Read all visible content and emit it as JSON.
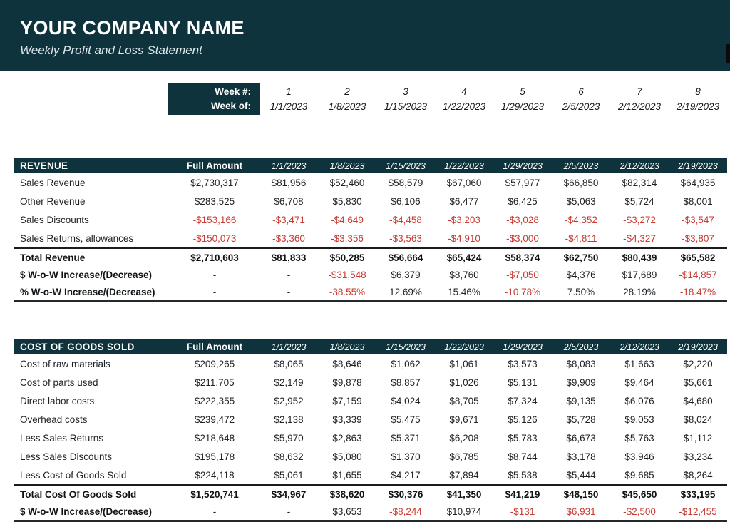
{
  "banner": {
    "company_name": "YOUR COMPANY NAME",
    "subtitle": "Weekly Profit and Loss Statement"
  },
  "colors": {
    "teal": "#0e333d",
    "red": "#c63a32",
    "banner_text": "#ffffff"
  },
  "week_header": {
    "week_num_label": "Week #:",
    "week_of_label": "Week of:",
    "numbers": [
      "1",
      "2",
      "3",
      "4",
      "5",
      "6",
      "7",
      "8"
    ],
    "dates": [
      "1/1/2023",
      "1/8/2023",
      "1/15/2023",
      "1/22/2023",
      "1/29/2023",
      "2/5/2023",
      "2/12/2023",
      "2/19/2023"
    ]
  },
  "tables": [
    {
      "title": "REVENUE",
      "full_amount_label": "Full Amount",
      "rows": [
        {
          "type": "item",
          "label": "Sales Revenue",
          "cells": [
            {
              "v": "$2,730,317"
            },
            {
              "v": "$81,956"
            },
            {
              "v": "$52,460"
            },
            {
              "v": "$58,579"
            },
            {
              "v": "$67,060"
            },
            {
              "v": "$57,977"
            },
            {
              "v": "$66,850"
            },
            {
              "v": "$82,314"
            },
            {
              "v": "$64,935"
            }
          ]
        },
        {
          "type": "item",
          "label": "Other Revenue",
          "cells": [
            {
              "v": "$283,525"
            },
            {
              "v": "$6,708"
            },
            {
              "v": "$5,830"
            },
            {
              "v": "$6,106"
            },
            {
              "v": "$6,477"
            },
            {
              "v": "$6,425"
            },
            {
              "v": "$5,063"
            },
            {
              "v": "$5,724"
            },
            {
              "v": "$8,001"
            }
          ]
        },
        {
          "type": "item",
          "label": "Sales Discounts",
          "cells": [
            {
              "v": "-$153,166",
              "red": true
            },
            {
              "v": "-$3,471",
              "red": true
            },
            {
              "v": "-$4,649",
              "red": true
            },
            {
              "v": "-$4,458",
              "red": true
            },
            {
              "v": "-$3,203",
              "red": true
            },
            {
              "v": "-$3,028",
              "red": true
            },
            {
              "v": "-$4,352",
              "red": true
            },
            {
              "v": "-$3,272",
              "red": true
            },
            {
              "v": "-$3,547",
              "red": true
            }
          ]
        },
        {
          "type": "item",
          "label": "Sales Returns, allowances",
          "cells": [
            {
              "v": "-$150,073",
              "red": true
            },
            {
              "v": "-$3,360",
              "red": true
            },
            {
              "v": "-$3,356",
              "red": true
            },
            {
              "v": "-$3,563",
              "red": true
            },
            {
              "v": "-$4,910",
              "red": true
            },
            {
              "v": "-$3,000",
              "red": true
            },
            {
              "v": "-$4,811",
              "red": true
            },
            {
              "v": "-$4,327",
              "red": true
            },
            {
              "v": "-$3,807",
              "red": true
            }
          ]
        },
        {
          "type": "total",
          "label": "Total Revenue",
          "cells": [
            {
              "v": "$2,710,603"
            },
            {
              "v": "$81,833"
            },
            {
              "v": "$50,285"
            },
            {
              "v": "$56,664"
            },
            {
              "v": "$65,424"
            },
            {
              "v": "$58,374"
            },
            {
              "v": "$62,750"
            },
            {
              "v": "$80,439"
            },
            {
              "v": "$65,582"
            }
          ]
        },
        {
          "type": "summary",
          "label": "$ W-o-W Increase/(Decrease)",
          "cells": [
            {
              "v": "-"
            },
            {
              "v": "-"
            },
            {
              "v": "-$31,548",
              "red": true
            },
            {
              "v": "$6,379"
            },
            {
              "v": "$8,760"
            },
            {
              "v": "-$7,050",
              "red": true
            },
            {
              "v": "$4,376"
            },
            {
              "v": "$17,689"
            },
            {
              "v": "-$14,857",
              "red": true
            }
          ]
        },
        {
          "type": "summary",
          "label": "% W-o-W Increase/(Decrease)",
          "cells": [
            {
              "v": "-"
            },
            {
              "v": "-"
            },
            {
              "v": "-38.55%",
              "red": true
            },
            {
              "v": "12.69%"
            },
            {
              "v": "15.46%"
            },
            {
              "v": "-10.78%",
              "red": true
            },
            {
              "v": "7.50%"
            },
            {
              "v": "28.19%"
            },
            {
              "v": "-18.47%",
              "red": true
            }
          ]
        }
      ]
    },
    {
      "title": "COST OF GOODS SOLD",
      "full_amount_label": "Full Amount",
      "rows": [
        {
          "type": "item",
          "label": "Cost of raw materials",
          "cells": [
            {
              "v": "$209,265"
            },
            {
              "v": "$8,065"
            },
            {
              "v": "$8,646"
            },
            {
              "v": "$1,062"
            },
            {
              "v": "$1,061"
            },
            {
              "v": "$3,573"
            },
            {
              "v": "$8,083"
            },
            {
              "v": "$1,663"
            },
            {
              "v": "$2,220"
            }
          ]
        },
        {
          "type": "item",
          "label": "Cost of parts used",
          "cells": [
            {
              "v": "$211,705"
            },
            {
              "v": "$2,149"
            },
            {
              "v": "$9,878"
            },
            {
              "v": "$8,857"
            },
            {
              "v": "$1,026"
            },
            {
              "v": "$5,131"
            },
            {
              "v": "$9,909"
            },
            {
              "v": "$9,464"
            },
            {
              "v": "$5,661"
            }
          ]
        },
        {
          "type": "item",
          "label": "Direct labor costs",
          "cells": [
            {
              "v": "$222,355"
            },
            {
              "v": "$2,952"
            },
            {
              "v": "$7,159"
            },
            {
              "v": "$4,024"
            },
            {
              "v": "$8,705"
            },
            {
              "v": "$7,324"
            },
            {
              "v": "$9,135"
            },
            {
              "v": "$6,076"
            },
            {
              "v": "$4,680"
            }
          ]
        },
        {
          "type": "item",
          "label": "Overhead costs",
          "cells": [
            {
              "v": "$239,472"
            },
            {
              "v": "$2,138"
            },
            {
              "v": "$3,339"
            },
            {
              "v": "$5,475"
            },
            {
              "v": "$9,671"
            },
            {
              "v": "$5,126"
            },
            {
              "v": "$5,728"
            },
            {
              "v": "$9,053"
            },
            {
              "v": "$8,024"
            }
          ]
        },
        {
          "type": "item",
          "label": "Less Sales Returns",
          "cells": [
            {
              "v": "$218,648"
            },
            {
              "v": "$5,970"
            },
            {
              "v": "$2,863"
            },
            {
              "v": "$5,371"
            },
            {
              "v": "$6,208"
            },
            {
              "v": "$5,783"
            },
            {
              "v": "$6,673"
            },
            {
              "v": "$5,763"
            },
            {
              "v": "$1,112"
            }
          ]
        },
        {
          "type": "item",
          "label": "Less Sales Discounts",
          "cells": [
            {
              "v": "$195,178"
            },
            {
              "v": "$8,632"
            },
            {
              "v": "$5,080"
            },
            {
              "v": "$1,370"
            },
            {
              "v": "$6,785"
            },
            {
              "v": "$8,744"
            },
            {
              "v": "$3,178"
            },
            {
              "v": "$3,946"
            },
            {
              "v": "$3,234"
            }
          ]
        },
        {
          "type": "item",
          "label": "Less Cost of Goods Sold",
          "cells": [
            {
              "v": "$224,118"
            },
            {
              "v": "$5,061"
            },
            {
              "v": "$1,655"
            },
            {
              "v": "$4,217"
            },
            {
              "v": "$7,894"
            },
            {
              "v": "$5,538"
            },
            {
              "v": "$5,444"
            },
            {
              "v": "$9,685"
            },
            {
              "v": "$8,264"
            }
          ]
        },
        {
          "type": "total",
          "label": "Total Cost Of Goods Sold",
          "cells": [
            {
              "v": "$1,520,741"
            },
            {
              "v": "$34,967"
            },
            {
              "v": "$38,620"
            },
            {
              "v": "$30,376"
            },
            {
              "v": "$41,350"
            },
            {
              "v": "$41,219"
            },
            {
              "v": "$48,150"
            },
            {
              "v": "$45,650"
            },
            {
              "v": "$33,195"
            }
          ]
        },
        {
          "type": "summary",
          "label": "$ W-o-W Increase/(Decrease)",
          "cells": [
            {
              "v": "-"
            },
            {
              "v": "-"
            },
            {
              "v": "$3,653"
            },
            {
              "v": "-$8,244",
              "red": true
            },
            {
              "v": "$10,974"
            },
            {
              "v": "-$131",
              "red": true
            },
            {
              "v": "$6,931",
              "red": true
            },
            {
              "v": "-$2,500",
              "red": true
            },
            {
              "v": "-$12,455",
              "red": true
            }
          ]
        }
      ]
    }
  ]
}
